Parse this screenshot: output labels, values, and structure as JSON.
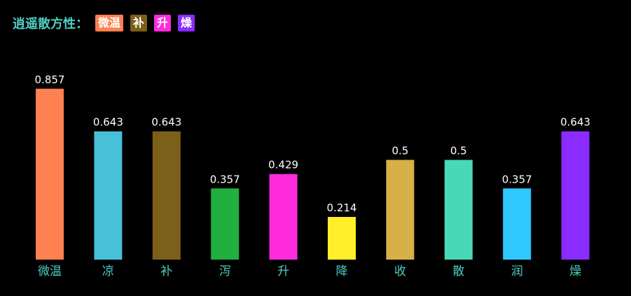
{
  "header": {
    "title": "逍遥散方性：",
    "tags": [
      {
        "label": "微温",
        "color": "#ff8050"
      },
      {
        "label": "补",
        "color": "#7a6018"
      },
      {
        "label": "升",
        "color": "#ff2cde"
      },
      {
        "label": "燥",
        "color": "#8a2cff"
      }
    ]
  },
  "chart_data": {
    "type": "bar",
    "categories": [
      "微温",
      "凉",
      "补",
      "泻",
      "升",
      "降",
      "收",
      "散",
      "润",
      "燥"
    ],
    "values": [
      0.857,
      0.643,
      0.643,
      0.357,
      0.429,
      0.214,
      0.5,
      0.5,
      0.357,
      0.643
    ],
    "colors": [
      "#ff8050",
      "#48c0d8",
      "#7a6018",
      "#20b040",
      "#ff2cde",
      "#ffee28",
      "#d8b048",
      "#48d8b8",
      "#30c8ff",
      "#8a2cff"
    ],
    "ylim": [
      0,
      1
    ],
    "grid": false,
    "title": "",
    "xlabel": "",
    "ylabel": ""
  }
}
